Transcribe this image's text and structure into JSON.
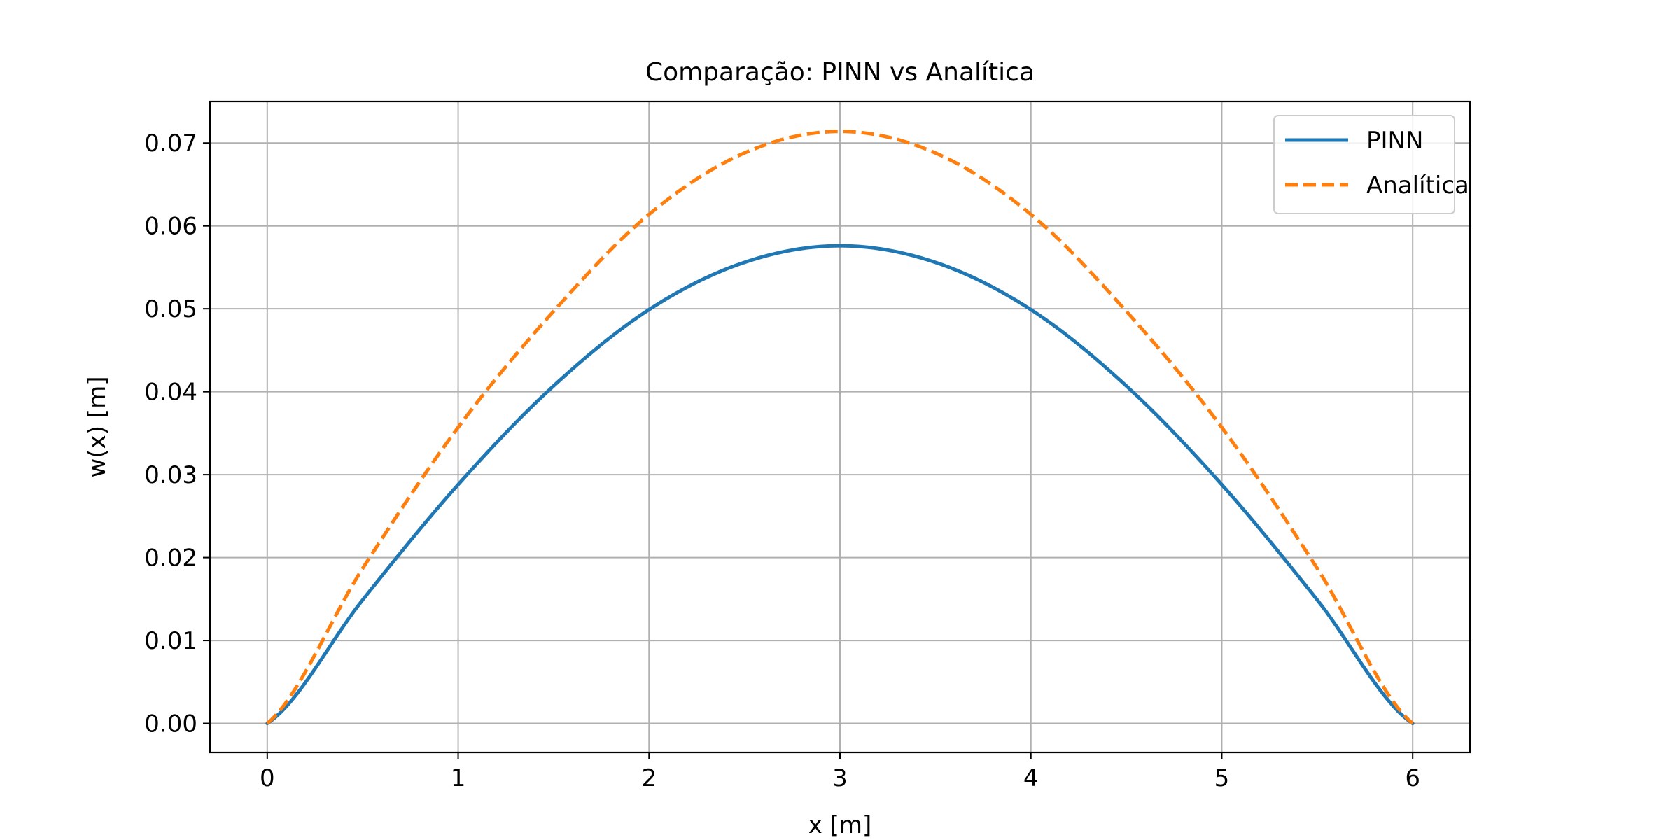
{
  "chart_data": {
    "type": "line",
    "title": "Comparação: PINN vs Analítica",
    "xlabel": "x [m]",
    "ylabel": "w(x) [m]",
    "xlim": [
      -0.3,
      6.3
    ],
    "ylim": [
      -0.0035,
      0.075
    ],
    "xticks": [
      0,
      1,
      2,
      3,
      4,
      5,
      6
    ],
    "xtick_labels": [
      "0",
      "1",
      "2",
      "3",
      "4",
      "5",
      "6"
    ],
    "yticks": [
      0.0,
      0.01,
      0.02,
      0.03,
      0.04,
      0.05,
      0.06,
      0.07
    ],
    "ytick_labels": [
      "0.00",
      "0.01",
      "0.02",
      "0.03",
      "0.04",
      "0.05",
      "0.06",
      "0.07"
    ],
    "grid": true,
    "legend_position": "top-right",
    "x": [
      0,
      0.5,
      1,
      1.5,
      2,
      2.5,
      3,
      3.5,
      4,
      4.5,
      5,
      5.5,
      6
    ],
    "series": [
      {
        "name": "PINN",
        "color": "#1f77b4",
        "style": "solid",
        "values": [
          0.0,
          0.0149,
          0.0288,
          0.0407,
          0.0499,
          0.0556,
          0.0576,
          0.0556,
          0.0499,
          0.0407,
          0.0288,
          0.0149,
          0.0
        ]
      },
      {
        "name": "Analítica",
        "color": "#ff7f0e",
        "style": "dashed",
        "values": [
          0.0,
          0.0187,
          0.0357,
          0.0497,
          0.0614,
          0.0688,
          0.0714,
          0.0688,
          0.0614,
          0.0497,
          0.0357,
          0.0187,
          0.0
        ]
      }
    ]
  }
}
